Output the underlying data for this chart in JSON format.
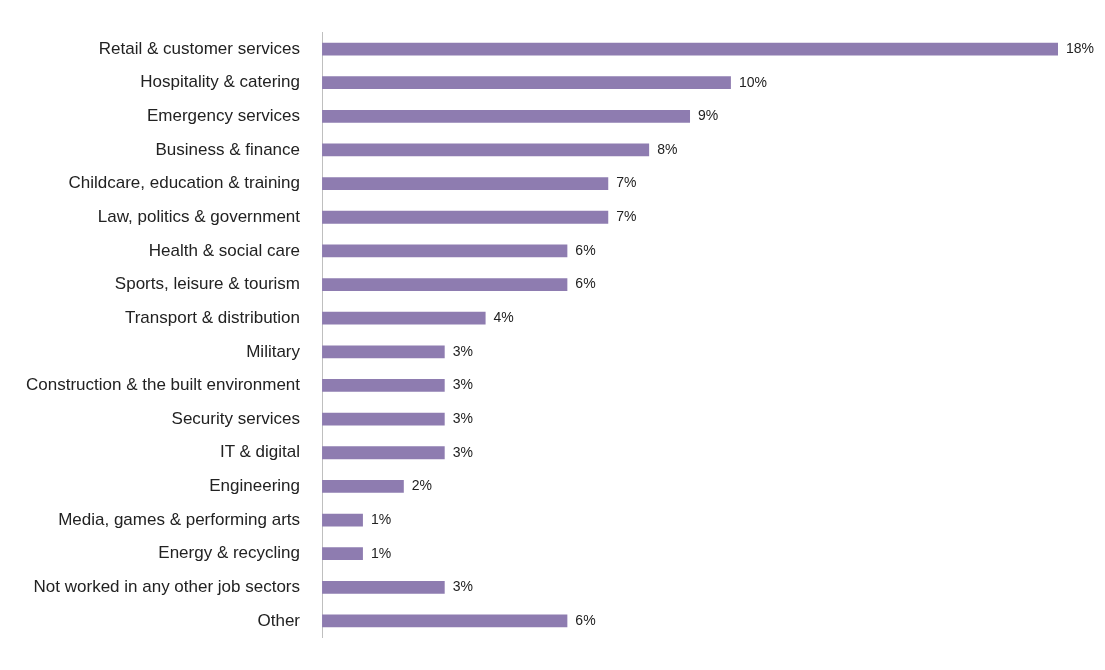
{
  "chart_data": {
    "type": "bar",
    "orientation": "horizontal",
    "categories": [
      "Retail & customer services",
      "Hospitality & catering",
      "Emergency services",
      "Business & finance",
      "Childcare, education & training",
      "Law, politics & government",
      "Health & social care",
      "Sports, leisure & tourism",
      "Transport & distribution",
      "Military",
      "Construction & the built environment",
      "Security services",
      "IT & digital",
      "Engineering",
      "Media, games & performing arts",
      "Energy & recycling",
      "Not worked in any other job sectors",
      "Other"
    ],
    "values": [
      18,
      10,
      9,
      8,
      7,
      7,
      6,
      6,
      4,
      3,
      3,
      3,
      3,
      2,
      1,
      1,
      3,
      6
    ],
    "value_labels": [
      "18%",
      "10%",
      "9%",
      "8%",
      "7%",
      "7%",
      "6%",
      "6%",
      "4%",
      "3%",
      "3%",
      "3%",
      "3%",
      "2%",
      "1%",
      "1%",
      "3%",
      "6%"
    ],
    "color": "#8e7cb0",
    "grid": false,
    "legend": false
  }
}
